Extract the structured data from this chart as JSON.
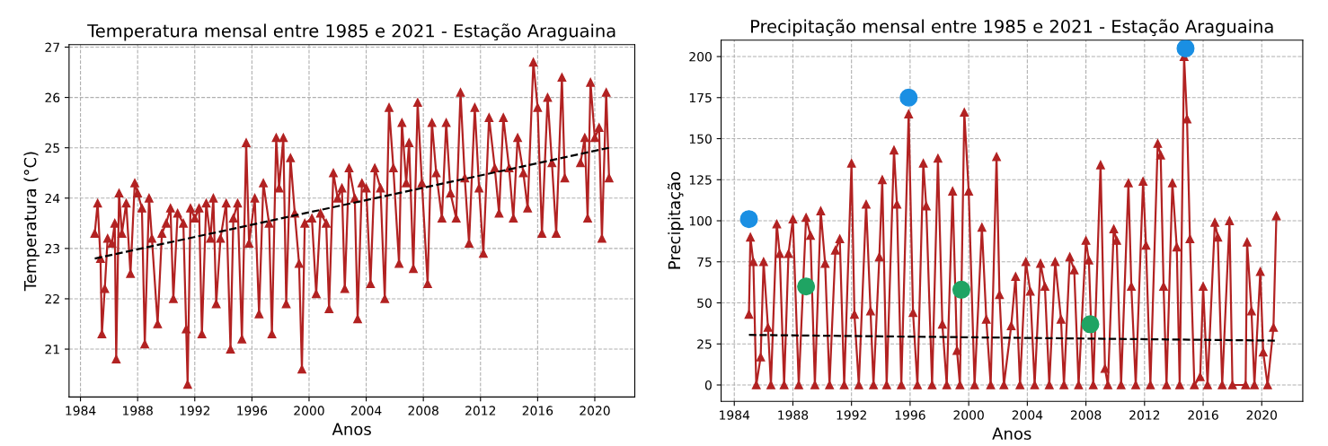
{
  "chart_data": [
    {
      "type": "line",
      "title": "Temperatura mensal entre 1985 e 2021 - Estação Araguaina",
      "xlabel": "Anos",
      "ylabel": "Temperatura (°C)",
      "xlim": [
        1983.2,
        2022.8
      ],
      "xticks": [
        1984,
        1988,
        1992,
        1996,
        2000,
        2004,
        2008,
        2012,
        2016,
        2020
      ],
      "ylim": [
        20.05,
        27.05
      ],
      "yticks": [
        21,
        22,
        23,
        24,
        25,
        26,
        27
      ],
      "grid": true,
      "series": [
        {
          "color": "#b22222",
          "marker": "triangle",
          "line_style": "solid",
          "x": [
            1985.0,
            1985.2,
            1985.4,
            1985.5,
            1985.7,
            1985.9,
            1986.2,
            1986.4,
            1986.5,
            1986.7,
            1986.9,
            1987.2,
            1987.5,
            1987.8,
            1988.0,
            1988.3,
            1988.5,
            1988.8,
            1989.0,
            1989.4,
            1989.7,
            1990.0,
            1990.3,
            1990.5,
            1990.8,
            1991.2,
            1991.4,
            1991.5,
            1991.7,
            1992.0,
            1992.3,
            1992.5,
            1992.8,
            1993.1,
            1993.3,
            1993.5,
            1993.8,
            1994.2,
            1994.5,
            1994.7,
            1995.0,
            1995.3,
            1995.6,
            1995.8,
            1996.2,
            1996.5,
            1996.8,
            1997.2,
            1997.4,
            1997.7,
            1997.9,
            1998.2,
            1998.4,
            1998.7,
            1999.0,
            1999.3,
            1999.5,
            1999.7,
            2000.2,
            2000.5,
            2000.8,
            2001.2,
            2001.4,
            2001.7,
            2002.0,
            2002.3,
            2002.5,
            2002.8,
            2003.2,
            2003.4,
            2003.7,
            2004.0,
            2004.3,
            2004.6,
            2005.0,
            2005.3,
            2005.6,
            2005.9,
            2006.3,
            2006.5,
            2006.8,
            2007.0,
            2007.3,
            2007.6,
            2007.9,
            2008.3,
            2008.6,
            2008.9,
            2009.3,
            2009.6,
            2009.9,
            2010.3,
            2010.6,
            2010.9,
            2011.2,
            2011.6,
            2011.9,
            2012.2,
            2012.6,
            2013.0,
            2013.3,
            2013.6,
            2014.0,
            2014.3,
            2014.6,
            2015.0,
            2015.3,
            2015.7,
            2016.0,
            2016.3,
            2016.7,
            2017.0,
            2017.3,
            2017.7,
            2017.9,
            2018.5,
            2019.0,
            2019.3,
            2019.5,
            2019.7,
            2020.0,
            2020.3,
            2020.5,
            2020.8,
            2021.0
          ],
          "values": [
            23.3,
            23.9,
            22.8,
            21.3,
            22.2,
            23.2,
            23.1,
            23.5,
            20.8,
            24.1,
            23.3,
            23.9,
            22.5,
            24.3,
            24.1,
            23.8,
            21.1,
            24.0,
            23.2,
            21.5,
            23.3,
            23.5,
            23.8,
            22.0,
            23.7,
            23.5,
            21.4,
            20.3,
            23.8,
            23.6,
            23.8,
            21.3,
            23.9,
            23.2,
            24.0,
            21.9,
            23.2,
            23.9,
            21.0,
            23.6,
            23.9,
            21.2,
            25.1,
            23.1,
            24.0,
            21.7,
            24.3,
            23.5,
            21.3,
            25.2,
            24.2,
            25.2,
            21.9,
            24.8,
            23.7,
            22.7,
            20.6,
            23.5,
            23.6,
            22.1,
            23.7,
            23.5,
            21.8,
            24.5,
            24.0,
            24.2,
            22.2,
            24.6,
            24.0,
            21.6,
            24.3,
            24.2,
            22.3,
            24.6,
            24.2,
            22.0,
            25.8,
            24.6,
            22.7,
            25.5,
            24.3,
            25.1,
            22.6,
            25.9,
            24.3,
            22.3,
            25.5,
            24.5,
            23.6,
            25.5,
            24.1,
            23.6,
            26.1,
            24.4,
            23.1,
            25.8,
            24.2,
            22.9,
            25.6,
            24.6,
            23.7,
            25.6,
            24.6,
            23.6,
            25.2,
            24.5,
            23.8,
            26.7,
            25.8,
            23.3,
            26.0,
            24.7,
            23.3,
            26.4,
            24.4,
            null,
            24.7,
            25.2,
            23.6,
            26.3,
            25.2,
            25.4,
            23.2,
            26.1,
            24.4
          ]
        },
        {
          "color": "#000000",
          "marker": "none",
          "line_style": "dashed",
          "x": [
            1985.0,
            2021.0
          ],
          "values": [
            22.8,
            25.0
          ]
        }
      ]
    },
    {
      "type": "line",
      "title": "Precipitação mensal entre 1985 e 2021 - Estação Araguaina",
      "xlabel": "Anos",
      "ylabel": "Precipitação",
      "xlim": [
        1983.1,
        2022.8
      ],
      "xticks": [
        1984,
        1988,
        1992,
        1996,
        2000,
        2004,
        2008,
        2012,
        2016,
        2020
      ],
      "ylim": [
        -10,
        210
      ],
      "yticks": [
        0,
        25,
        50,
        75,
        100,
        125,
        150,
        175,
        200
      ],
      "grid": true,
      "series": [
        {
          "color": "#b22222",
          "marker": "triangle",
          "line_style": "solid",
          "x": [
            1985.0,
            1985.1,
            1985.3,
            1985.5,
            1985.8,
            1986.0,
            1986.3,
            1986.5,
            1986.9,
            1987.1,
            1987.4,
            1987.7,
            1988.0,
            1988.4,
            1988.9,
            1989.2,
            1989.5,
            1989.9,
            1990.2,
            1990.5,
            1990.9,
            1991.2,
            1991.5,
            1992.0,
            1992.2,
            1992.5,
            1993.0,
            1993.3,
            1993.5,
            1993.9,
            1994.1,
            1994.4,
            1994.9,
            1995.1,
            1995.4,
            1995.9,
            1996.2,
            1996.5,
            1996.9,
            1997.1,
            1997.5,
            1997.9,
            1998.2,
            1998.5,
            1998.9,
            1999.2,
            1999.4,
            1999.7,
            2000.0,
            2000.4,
            2000.9,
            2001.2,
            2001.5,
            2001.9,
            2002.1,
            2002.4,
            2002.9,
            2003.2,
            2003.5,
            2003.9,
            2004.2,
            2004.5,
            2004.9,
            2005.2,
            2005.5,
            2005.9,
            2006.3,
            2006.5,
            2006.9,
            2007.2,
            2007.5,
            2008.0,
            2008.2,
            2008.5,
            2009.0,
            2009.3,
            2009.5,
            2009.9,
            2010.1,
            2010.4,
            2010.9,
            2011.1,
            2011.4,
            2011.9,
            2012.1,
            2012.4,
            2012.9,
            2013.1,
            2013.3,
            2013.5,
            2013.9,
            2014.2,
            2014.4,
            2014.7,
            2014.9,
            2015.1,
            2015.4,
            2015.8,
            2016.0,
            2016.3,
            2016.8,
            2017.0,
            2017.3,
            2017.8,
            2018.0,
            2018.9,
            2019.0,
            2019.3,
            2019.5,
            2019.9,
            2020.1,
            2020.4,
            2020.8,
            2021.0
          ],
          "values": [
            43,
            90,
            75,
            0,
            17,
            75,
            35,
            0,
            98,
            80,
            0,
            80,
            101,
            0,
            102,
            91,
            0,
            106,
            74,
            0,
            82,
            89,
            0,
            135,
            43,
            0,
            110,
            45,
            0,
            78,
            125,
            0,
            143,
            110,
            0,
            165,
            44,
            0,
            135,
            109,
            0,
            138,
            37,
            0,
            118,
            21,
            0,
            166,
            118,
            0,
            96,
            40,
            0,
            139,
            55,
            0,
            36,
            66,
            0,
            75,
            57,
            0,
            74,
            60,
            0,
            75,
            40,
            0,
            78,
            70,
            0,
            88,
            76,
            0,
            134,
            10,
            0,
            95,
            88,
            0,
            123,
            60,
            0,
            124,
            85,
            0,
            147,
            140,
            60,
            0,
            123,
            84,
            0,
            200,
            162,
            89,
            0,
            5,
            60,
            0,
            99,
            90,
            0,
            100,
            0,
            0,
            87,
            45,
            0,
            69,
            20,
            0,
            35,
            103
          ]
        },
        {
          "color": "#000000",
          "marker": "none",
          "line_style": "dashed",
          "x": [
            1985.0,
            2021.0
          ],
          "values": [
            30.5,
            27.0
          ]
        },
        {
          "type": "scatter",
          "color": "#1a8fe3",
          "marker": "circle",
          "x": [
            1985.0,
            1995.9,
            2014.8
          ],
          "values": [
            101,
            175,
            205
          ]
        },
        {
          "type": "scatter",
          "color": "#1fa463",
          "marker": "circle",
          "x": [
            1988.9,
            1999.5,
            2008.3
          ],
          "values": [
            60,
            58,
            37
          ]
        }
      ]
    }
  ]
}
